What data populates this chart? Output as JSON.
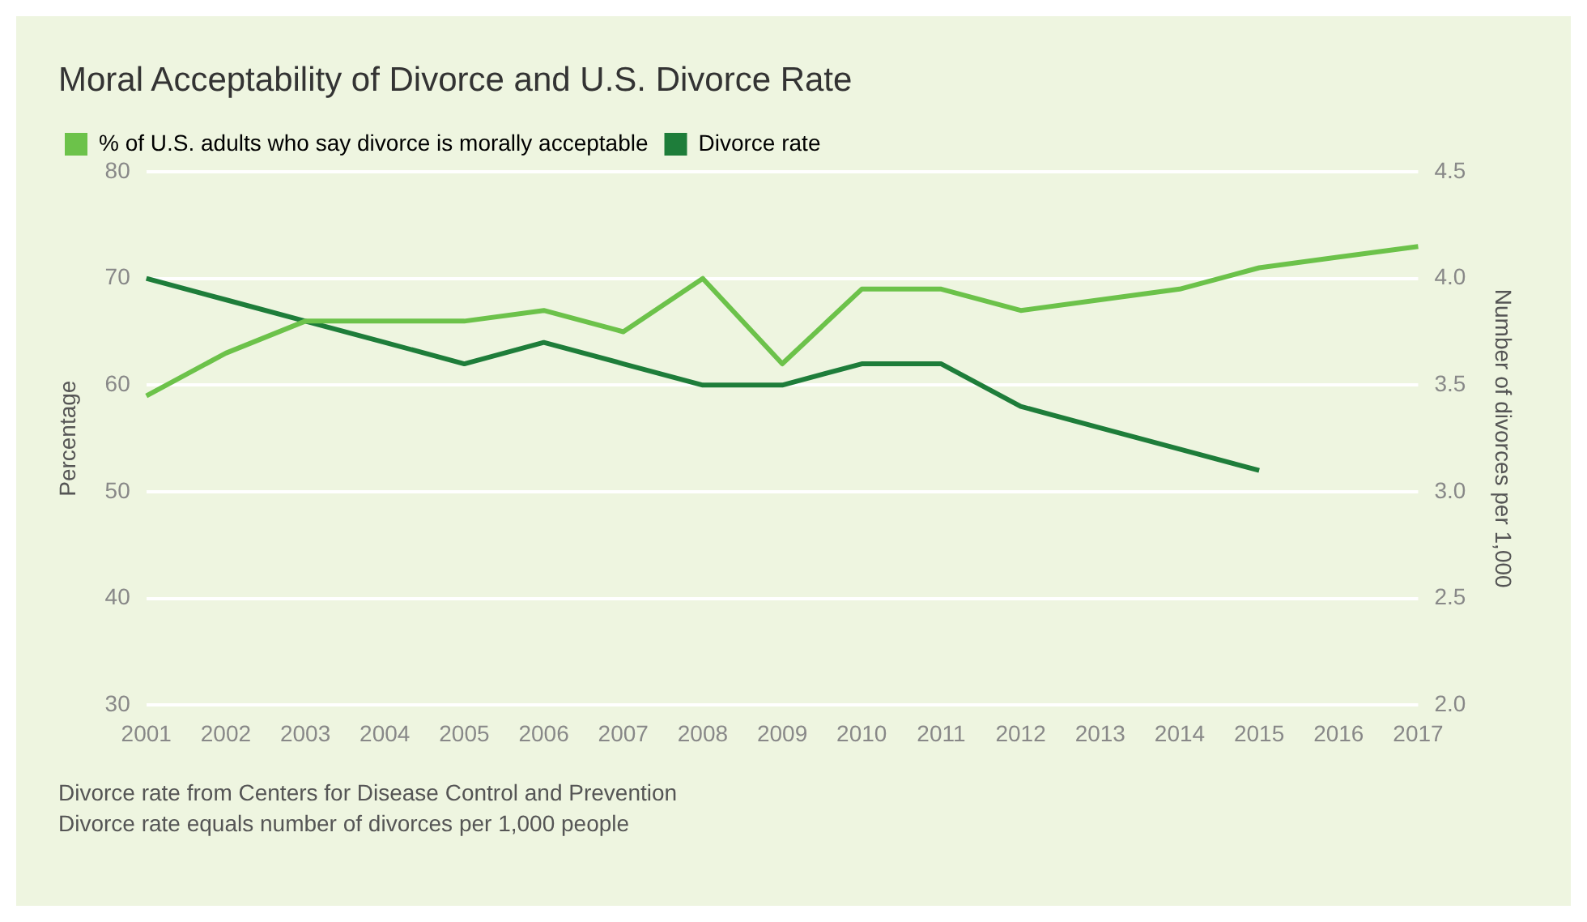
{
  "chart_data": {
    "type": "line",
    "title": "Moral Acceptability of Divorce and U.S. Divorce Rate",
    "ylabel": "Percentage",
    "y2label": "Number of divorces per 1,000",
    "categories": [
      "2001",
      "2002",
      "2003",
      "2004",
      "2005",
      "2006",
      "2007",
      "2008",
      "2009",
      "2010",
      "2011",
      "2012",
      "2013",
      "2014",
      "2015",
      "2016",
      "2017"
    ],
    "series": [
      {
        "name": "% of U.S. adults who say divorce is morally acceptable",
        "color": "#6cc24a",
        "values": [
          59,
          63,
          66,
          66,
          66,
          67,
          65,
          70,
          62,
          69,
          69,
          67,
          68,
          69,
          71,
          72,
          73
        ]
      },
      {
        "name": "Divorce rate",
        "color": "#1e7d3a",
        "axis": "y2",
        "values": [
          4.0,
          3.9,
          3.8,
          3.7,
          3.6,
          3.7,
          3.6,
          3.5,
          3.5,
          3.6,
          3.6,
          3.4,
          3.3,
          3.2,
          3.1,
          null,
          null
        ]
      }
    ],
    "ylim": [
      30,
      80
    ],
    "yticks": [
      30,
      40,
      50,
      60,
      70,
      80
    ],
    "y2lim": [
      2.0,
      4.5
    ],
    "y2ticks": [
      {
        "value": 2,
        "label": "2.0"
      },
      {
        "value": 2.5,
        "label": "2.5"
      },
      {
        "value": 3,
        "label": "3.0"
      },
      {
        "value": 3.5,
        "label": "3.5"
      },
      {
        "value": 4,
        "label": "4.0"
      },
      {
        "value": 4.5,
        "label": "4.5"
      }
    ],
    "grid": "y",
    "legend": "top left",
    "marker": "none",
    "line_style": "solid",
    "annotations": [
      "Divorce rate from Centers for Disease Control and Prevention",
      "Divorce rate equals number of divorces per 1,000 people"
    ]
  }
}
